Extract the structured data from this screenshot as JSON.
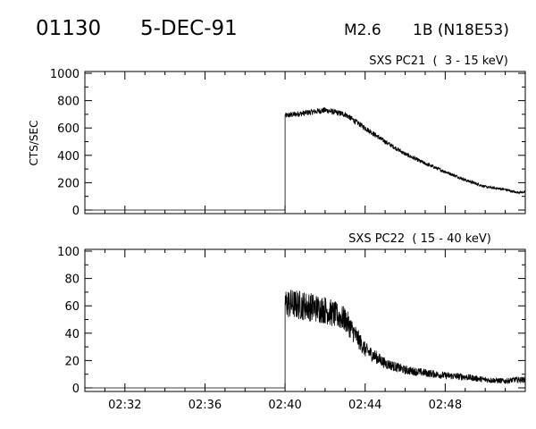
{
  "header": {
    "event_id": "01130",
    "date": "5-DEC-91",
    "class": "M2.6",
    "location": "1B (N18E53)"
  },
  "chart_data": [
    {
      "type": "line",
      "title": "SXS PC21  (  3 - 15 keV)",
      "ylabel": "CTS/SEC",
      "ylim": [
        0,
        1000
      ],
      "yticks": [
        "0",
        "200",
        "400",
        "600",
        "800",
        "1000"
      ],
      "xlim": [
        "02:30",
        "02:52"
      ],
      "grid": false,
      "series": [
        {
          "x": [
            "02:30",
            "02:40",
            "02:40",
            "02:41",
            "02:42",
            "02:43",
            "02:44",
            "02:45",
            "02:46",
            "02:47",
            "02:48",
            "02:49",
            "02:50",
            "02:51",
            "02:51.5",
            "02:52"
          ],
          "values": [
            0,
            0,
            690,
            710,
            730,
            700,
            600,
            500,
            410,
            340,
            280,
            220,
            170,
            150,
            130,
            130
          ]
        }
      ]
    },
    {
      "type": "line",
      "title": "SXS PC22  ( 15 - 40 keV)",
      "ylabel": "",
      "ylim": [
        0,
        100
      ],
      "yticks": [
        "0",
        "20",
        "40",
        "60",
        "80",
        "100"
      ],
      "xlim": [
        "02:30",
        "02:52"
      ],
      "xticks": [
        "02:32",
        "02:36",
        "02:40",
        "02:44",
        "02:48"
      ],
      "grid": false,
      "series": [
        {
          "x": [
            "02:30",
            "02:40",
            "02:40",
            "02:41",
            "02:42",
            "02:43",
            "02:44",
            "02:45",
            "02:46",
            "02:47",
            "02:48",
            "02:49",
            "02:50",
            "02:51",
            "02:51.5",
            "02:52"
          ],
          "values": [
            0,
            0,
            62,
            60,
            57,
            50,
            28,
            18,
            13,
            11,
            9,
            8,
            6,
            5,
            6,
            6
          ]
        }
      ]
    }
  ]
}
